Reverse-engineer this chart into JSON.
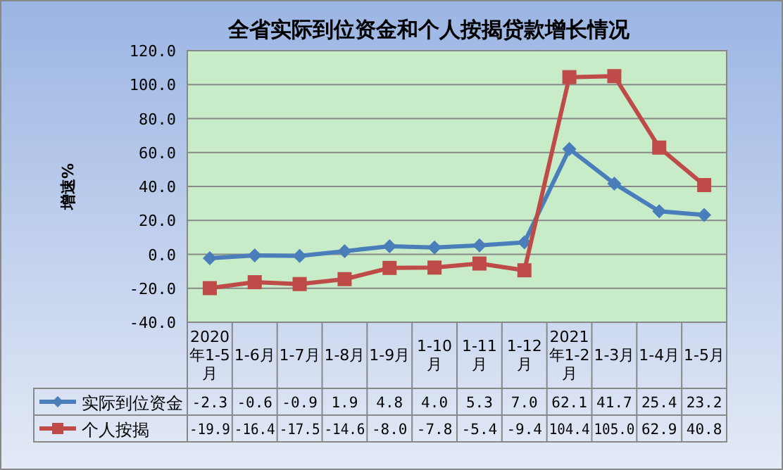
{
  "chart_data": {
    "type": "line",
    "title": "全省实际到位资金和个人按揭贷款增长情况",
    "ylabel": "增速%",
    "categories": [
      "2020年1-5月",
      "1-6月",
      "1-7月",
      "1-8月",
      "1-9月",
      "1-10月",
      "1-11月",
      "1-12月",
      "2021年1-2月",
      "1-3月",
      "1-4月",
      "1-5月"
    ],
    "series": [
      {
        "name": "实际到位资金",
        "color": "#4a7ebb",
        "marker": "diamond",
        "values": [
          -2.3,
          -0.6,
          -0.9,
          1.9,
          4.8,
          4.0,
          5.3,
          7.0,
          62.1,
          41.7,
          25.4,
          23.2
        ],
        "value_labels": [
          "-2.3",
          "-0.6",
          "-0.9",
          "1.9",
          "4.8",
          "4.0",
          "5.3",
          "7.0",
          "62.1",
          "41.7",
          "25.4",
          "23.2"
        ]
      },
      {
        "name": "个人按揭",
        "color": "#be4b48",
        "marker": "square",
        "values": [
          -19.9,
          -16.4,
          -17.5,
          -14.6,
          -8.0,
          -7.8,
          -5.4,
          -9.4,
          104.4,
          105.0,
          62.9,
          40.8
        ],
        "value_labels": [
          "-19.9",
          "-16.4",
          "-17.5",
          "-14.6",
          "-8.0",
          "-7.8",
          "-5.4",
          "-9.4",
          "104.4",
          "105.0",
          "62.9",
          "40.8"
        ]
      }
    ],
    "ylim": [
      -40,
      120
    ],
    "yticks": [
      {
        "value": -40,
        "label": "-40.0"
      },
      {
        "value": -20,
        "label": "-20.0"
      },
      {
        "value": 0,
        "label": "0.0"
      },
      {
        "value": 20,
        "label": "20.0"
      },
      {
        "value": 40,
        "label": "40.0"
      },
      {
        "value": 60,
        "label": "60.0"
      },
      {
        "value": 80,
        "label": "80.0"
      },
      {
        "value": 100,
        "label": "100.0"
      },
      {
        "value": 120,
        "label": "120.0"
      }
    ],
    "grid": "y",
    "legend": "bottom",
    "line_style": "solid"
  }
}
